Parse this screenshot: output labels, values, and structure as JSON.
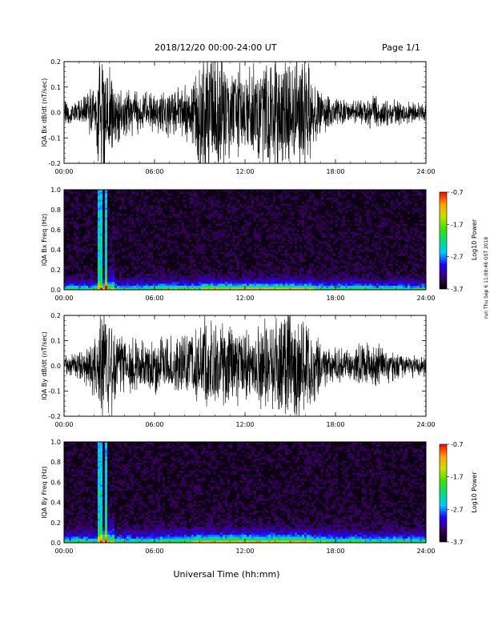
{
  "header": {
    "title": "2018/12/20   00:00-24:00 UT",
    "page": "Page 1/1"
  },
  "footer": {
    "xlabel": "Universal Time (hh:mm)"
  },
  "side_annotation": "run Thu Sep 6 11:08:46 GST 2018",
  "colorbar": {
    "label": "Log10 Power",
    "ticks": [
      "-0.7",
      "-1.7",
      "-2.7",
      "-3.7"
    ],
    "range": [
      -3.7,
      -0.7
    ],
    "colors": [
      "#000000",
      "#3a0066",
      "#2200ff",
      "#00c8ff",
      "#00e07a",
      "#40e000",
      "#c8e000",
      "#ffa000",
      "#ff0000"
    ]
  },
  "chart_data": [
    {
      "type": "line",
      "ylabel": "IQA Bx dB/dt (nT/sec)",
      "ylim": [
        -0.2,
        0.2
      ],
      "yticks": [
        "-0.2",
        "-0.1",
        "0.0",
        "0.1",
        "0.2"
      ],
      "xlim": [
        "00:00",
        "24:00"
      ],
      "xticks": [
        "00:00",
        "06:00",
        "12:00",
        "18:00",
        "24:00"
      ],
      "envelope": {
        "hours": [
          0,
          1,
          2,
          2.4,
          2.6,
          2.8,
          3.0,
          3.3,
          4,
          5,
          6,
          7,
          8,
          8.6,
          9,
          10,
          11,
          12,
          13,
          14,
          15,
          16,
          16.6,
          17,
          18,
          19,
          20,
          21,
          22,
          23,
          24
        ],
        "amplitude": [
          0.05,
          0.06,
          0.1,
          0.25,
          0.25,
          0.25,
          0.25,
          0.14,
          0.1,
          0.09,
          0.08,
          0.1,
          0.1,
          0.15,
          0.25,
          0.25,
          0.2,
          0.18,
          0.22,
          0.25,
          0.25,
          0.22,
          0.13,
          0.08,
          0.06,
          0.04,
          0.07,
          0.06,
          0.05,
          0.05,
          0.03
        ]
      }
    },
    {
      "type": "heatmap",
      "ylabel": "IQA Bx Freq (Hz)",
      "ylim": [
        0.0,
        1.0
      ],
      "yticks": [
        "0.0",
        "0.2",
        "0.4",
        "0.6",
        "0.8",
        "1.0"
      ],
      "xlim": [
        "00:00",
        "24:00"
      ],
      "xticks": [
        "00:00",
        "06:00",
        "12:00",
        "18:00",
        "24:00"
      ],
      "zlim": [
        -3.7,
        -0.7
      ],
      "features": {
        "background_level": -3.5,
        "low_freq_band_hz": 0.05,
        "event_hours": [
          2.3,
          2.5,
          2.75
        ],
        "active_hours": [
          9.0,
          16.5
        ]
      }
    },
    {
      "type": "line",
      "ylabel": "IQA By dB/dt (nT/sec)",
      "ylim": [
        -0.2,
        0.2
      ],
      "yticks": [
        "-0.2",
        "-0.1",
        "0.0",
        "0.1",
        "0.2"
      ],
      "xlim": [
        "00:00",
        "24:00"
      ],
      "xticks": [
        "00:00",
        "06:00",
        "12:00",
        "18:00",
        "24:00"
      ],
      "envelope": {
        "hours": [
          0,
          1,
          2,
          2.4,
          2.6,
          2.8,
          3.0,
          3.3,
          4,
          5,
          6,
          7,
          8,
          8.6,
          9,
          10,
          11,
          12,
          13,
          14,
          15,
          16,
          16.6,
          17,
          18,
          19,
          20,
          21,
          22,
          23,
          24
        ],
        "amplitude": [
          0.04,
          0.06,
          0.12,
          0.25,
          0.25,
          0.25,
          0.25,
          0.15,
          0.12,
          0.11,
          0.11,
          0.12,
          0.14,
          0.16,
          0.2,
          0.18,
          0.17,
          0.15,
          0.16,
          0.2,
          0.25,
          0.22,
          0.15,
          0.1,
          0.08,
          0.06,
          0.1,
          0.08,
          0.06,
          0.05,
          0.04
        ]
      }
    },
    {
      "type": "heatmap",
      "ylabel": "IQA By Freq (Hz)",
      "ylim": [
        0.0,
        1.0
      ],
      "yticks": [
        "0.0",
        "0.2",
        "0.4",
        "0.6",
        "0.8",
        "1.0"
      ],
      "xlim": [
        "00:00",
        "24:00"
      ],
      "xticks": [
        "00:00",
        "06:00",
        "12:00",
        "18:00",
        "24:00"
      ],
      "zlim": [
        -3.7,
        -0.7
      ],
      "features": {
        "background_level": -3.5,
        "low_freq_band_hz": 0.06,
        "event_hours": [
          2.3,
          2.5,
          2.75
        ],
        "active_hours": [
          8.5,
          16.5
        ]
      }
    }
  ]
}
